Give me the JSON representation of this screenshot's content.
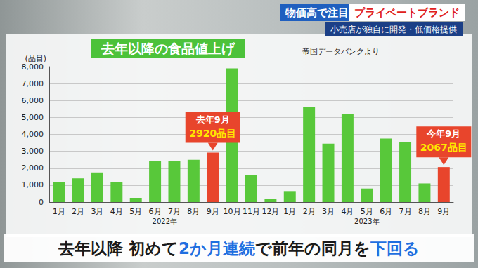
{
  "header": {
    "tag": "物価高で注目",
    "topic": "プライベートブランド",
    "subtitle": "小売店が独自に開発・低価格提供"
  },
  "caption": [
    {
      "text": "去年以降 初めて",
      "highlight": false
    },
    {
      "text": "2か月連続",
      "highlight": true
    },
    {
      "text": "で前年の同月を",
      "highlight": false
    },
    {
      "text": "下回る",
      "highlight": true
    }
  ],
  "chart_data": {
    "type": "bar",
    "title": "去年以降の食品値上げ",
    "source": "帝国データバンクより",
    "y_label": "(品目)",
    "categories": [
      "1月",
      "2月",
      "3月",
      "4月",
      "5月",
      "6月",
      "7月",
      "8月",
      "9月",
      "10月",
      "11月",
      "12月",
      "1月",
      "2月",
      "3月",
      "4月",
      "5月",
      "6月",
      "7月",
      "8月",
      "9月"
    ],
    "values": [
      1200,
      1400,
      1750,
      1200,
      250,
      2400,
      2450,
      2500,
      2920,
      7900,
      1600,
      180,
      650,
      5600,
      3450,
      5200,
      800,
      3750,
      3550,
      1100,
      2067
    ],
    "colors": [
      "#58c83a",
      "#58c83a",
      "#58c83a",
      "#58c83a",
      "#58c83a",
      "#58c83a",
      "#58c83a",
      "#58c83a",
      "#e8452c",
      "#58c83a",
      "#58c83a",
      "#58c83a",
      "#58c83a",
      "#58c83a",
      "#58c83a",
      "#58c83a",
      "#58c83a",
      "#58c83a",
      "#58c83a",
      "#58c83a",
      "#e8452c"
    ],
    "category_groups": [
      {
        "label": "2022年",
        "first": 0,
        "last": 11
      },
      {
        "label": "2023年",
        "first": 12,
        "last": 20
      }
    ],
    "annotations": [
      {
        "category_index": 8,
        "label": "去年9月",
        "value_label": "2920品目"
      },
      {
        "category_index": 20,
        "label": "今年9月",
        "value_label": "2067品目"
      }
    ],
    "ylim": [
      0,
      8000
    ],
    "yticks": [
      0,
      1000,
      2000,
      3000,
      4000,
      5000,
      6000,
      7000,
      8000
    ],
    "grid": true,
    "data_labels": false
  }
}
